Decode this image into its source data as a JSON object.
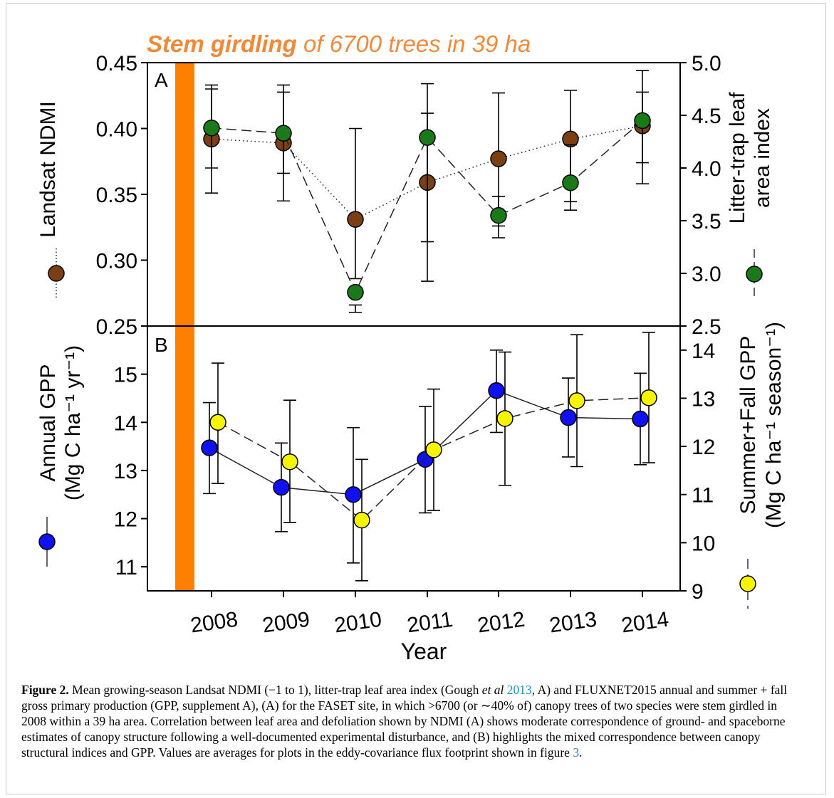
{
  "banner": {
    "bold": "Stem girdling",
    "rest": " of 6700 trees in 39 ha"
  },
  "colors": {
    "ndmi": "#7b3f14",
    "lai": "#1a7a1a",
    "annual_gpp": "#1010f0",
    "summer_gpp": "#f5f500",
    "girdling_bar": "#ff8000",
    "banner_text": "#f08a3a"
  },
  "chart_data": [
    {
      "panel": "A",
      "type": "line",
      "x": [
        "2008",
        "2009",
        "2010",
        "2011",
        "2012",
        "2013",
        "2014"
      ],
      "y_left": {
        "label": "Landsat NDMI",
        "lim": [
          0.25,
          0.45
        ],
        "ticks": [
          "0.45",
          "0.40",
          "0.35",
          "0.30",
          "0.25"
        ]
      },
      "y_right": {
        "label": "Litter-trap leaf area index",
        "lim": [
          2.5,
          5.0
        ],
        "ticks": [
          "5.0",
          "4.5",
          "4.0",
          "3.5",
          "3.0",
          "2.5"
        ]
      },
      "series": [
        {
          "axis": "left",
          "style": "dotted",
          "values": [
            0.392,
            0.389,
            0.331,
            0.359,
            0.377,
            0.392,
            0.402
          ],
          "err_low": [
            0.351,
            0.345,
            0.286,
            0.284,
            0.317,
            0.338,
            0.358
          ],
          "err_high": [
            0.433,
            0.433,
            0.4,
            0.434,
            0.427,
            0.429,
            0.444
          ]
        },
        {
          "axis": "right",
          "style": "dashed",
          "values": [
            4.38,
            4.33,
            2.82,
            4.29,
            3.55,
            3.86,
            4.45
          ],
          "err_low": [
            4.0,
            3.95,
            2.63,
            3.3,
            3.45,
            3.68,
            4.05
          ],
          "err_high": [
            4.75,
            4.72,
            2.7,
            4.52,
            3.73,
            4.22,
            4.72
          ]
        }
      ]
    },
    {
      "panel": "B",
      "type": "line",
      "x": [
        "2008",
        "2009",
        "2010",
        "2011",
        "2012",
        "2013",
        "2014"
      ],
      "xlabel": "Year",
      "y_left": {
        "label_line1": "Annual GPP",
        "label_line2": "(Mg C ha⁻¹ yr⁻¹)",
        "lim": [
          10.5,
          16.0
        ],
        "ticks": [
          "15",
          "14",
          "13",
          "12",
          "11"
        ]
      },
      "y_right": {
        "label_line1": "Summer+Fall GPP",
        "label_line2": "(Mg C ha⁻¹ season⁻¹)",
        "lim": [
          9.0,
          14.5
        ],
        "ticks": [
          "14",
          "13",
          "12",
          "11",
          "10",
          "9"
        ]
      },
      "series": [
        {
          "axis": "left",
          "style": "solid",
          "values": [
            13.47,
            12.65,
            12.5,
            13.23,
            14.66,
            14.1,
            14.07
          ],
          "err_low": [
            12.52,
            11.73,
            11.08,
            12.12,
            13.79,
            13.28,
            13.12
          ],
          "err_high": [
            14.41,
            13.57,
            13.89,
            14.33,
            15.5,
            14.92,
            15.02
          ]
        },
        {
          "axis": "right",
          "style": "dashed",
          "values": [
            12.5,
            11.68,
            10.47,
            11.93,
            12.58,
            12.95,
            13.01
          ],
          "err_low": [
            11.23,
            10.42,
            9.21,
            10.67,
            11.19,
            11.58,
            11.66
          ],
          "err_high": [
            13.73,
            12.96,
            11.73,
            13.19,
            13.96,
            14.32,
            14.37
          ]
        }
      ]
    }
  ],
  "caption": {
    "label": "Figure 2.",
    "t1": " Mean growing-season Landsat NDMI (−1 to 1), litter-trap leaf area index (Gough ",
    "italic": "et al",
    "t2": " ",
    "link1": "2013",
    "t3": ", A) and FLUXNET2015 annual and summer + fall gross primary production (GPP, supplement A), (A) for the FASET site, in which >6700 (or ∼40% of) canopy trees of two species were stem girdled in 2008 within a 39 ha area. Correlation between leaf area and defoliation shown by NDMI (A) shows moderate correspondence of ground- and spaceborne estimates of canopy structure following a well-documented experimental disturbance, and (B) highlights the mixed correspondence between canopy structural indices and GPP. Values are averages for plots in the eddy-covariance flux footprint shown in figure ",
    "link2": "3",
    "t4": "."
  }
}
